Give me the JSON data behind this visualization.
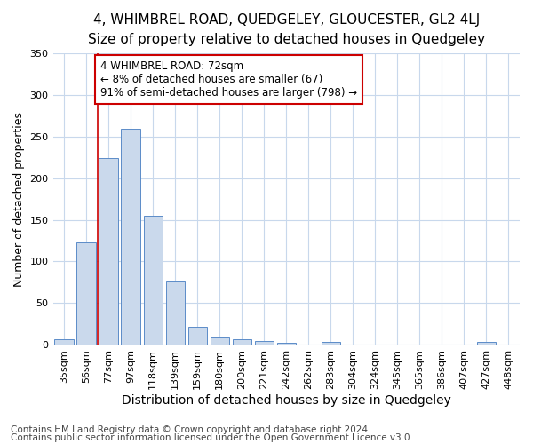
{
  "title_line1": "4, WHIMBREL ROAD, QUEDGELEY, GLOUCESTER, GL2 4LJ",
  "title_line2": "Size of property relative to detached houses in Quedgeley",
  "xlabel": "Distribution of detached houses by size in Quedgeley",
  "ylabel": "Number of detached properties",
  "bar_labels": [
    "35sqm",
    "56sqm",
    "77sqm",
    "97sqm",
    "118sqm",
    "139sqm",
    "159sqm",
    "180sqm",
    "200sqm",
    "221sqm",
    "242sqm",
    "262sqm",
    "283sqm",
    "304sqm",
    "324sqm",
    "345sqm",
    "365sqm",
    "386sqm",
    "407sqm",
    "427sqm",
    "448sqm"
  ],
  "bar_values": [
    6,
    123,
    224,
    260,
    155,
    76,
    21,
    9,
    6,
    4,
    2,
    0,
    3,
    0,
    0,
    0,
    0,
    0,
    0,
    3,
    0
  ],
  "bar_color": "#cad9ec",
  "bar_edgecolor": "#5b8cc8",
  "vline_x": 1.5,
  "vline_color": "#cc0000",
  "annotation_text": "4 WHIMBREL ROAD: 72sqm\n← 8% of detached houses are smaller (67)\n91% of semi-detached houses are larger (798) →",
  "annotation_box_facecolor": "#ffffff",
  "annotation_box_edgecolor": "#cc0000",
  "ylim": [
    0,
    350
  ],
  "yticks": [
    0,
    50,
    100,
    150,
    200,
    250,
    300,
    350
  ],
  "footnote1": "Contains HM Land Registry data © Crown copyright and database right 2024.",
  "footnote2": "Contains public sector information licensed under the Open Government Licence v3.0.",
  "figure_background_color": "#ffffff",
  "plot_background_color": "#ffffff",
  "grid_color": "#c8d8ec",
  "title1_fontsize": 11,
  "title2_fontsize": 10,
  "xlabel_fontsize": 10,
  "ylabel_fontsize": 9,
  "tick_fontsize": 8,
  "annotation_fontsize": 8.5,
  "footnote_fontsize": 7.5
}
